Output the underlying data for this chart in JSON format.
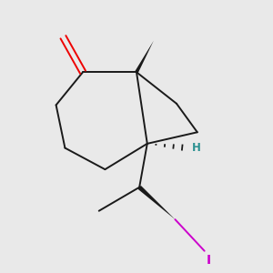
{
  "bg_color": "#e9e9e9",
  "bond_color": "#1a1a1a",
  "oxygen_color": "#ee0000",
  "iodine_color": "#cc00cc",
  "stereo_H_color": "#2a9090",
  "figsize": [
    3.0,
    3.0
  ],
  "dpi": 100
}
